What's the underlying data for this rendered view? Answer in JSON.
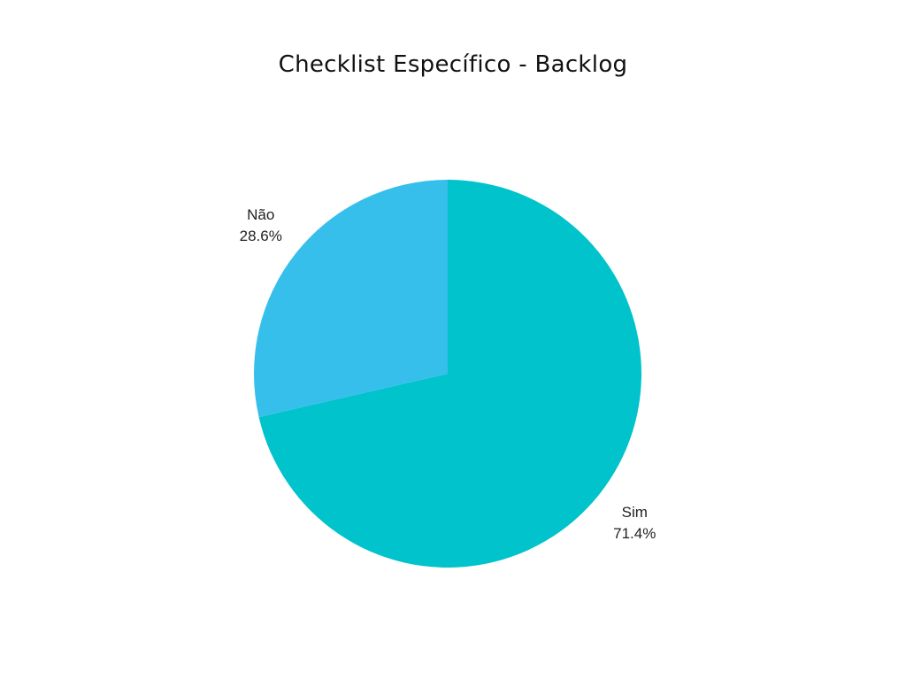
{
  "chart_data": {
    "type": "pie",
    "title": "Checklist Específico - Backlog",
    "slices": [
      {
        "label": "Sim",
        "value": 71.4,
        "display": "71.4%",
        "color": "#00C3CB"
      },
      {
        "label": "Não",
        "value": 28.6,
        "display": "28.6%",
        "color": "#37BFEB"
      }
    ],
    "start_angle": "12 o'clock",
    "direction": "clockwise",
    "legend": "none"
  }
}
